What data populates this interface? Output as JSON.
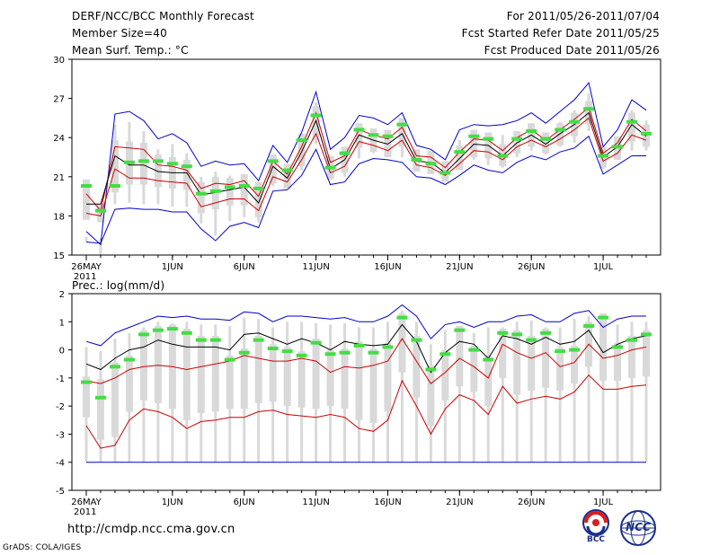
{
  "header": {
    "title": "DERF/NCC/BCC Monthly Forecast",
    "member_size": "Member Size=40",
    "variable": "Mean Surf. Temp.: °C",
    "period": "For 2011/05/26-2011/07/04",
    "started": "Fcst Started Refer Date 2011/05/25",
    "produced": "Fcst Produced Date 2011/05/26"
  },
  "footer": {
    "url": "http://cmdp.ncc.cma.gov.cn",
    "credit": "GrADS: COLA/IGES",
    "logo_bcc": "BCC",
    "logo_ncc": "NCC"
  },
  "colors": {
    "envelope": "#0000cc",
    "spread": "#cc0000",
    "mean": "#000000",
    "observed": "#44dd44",
    "box": "#d9d9da"
  },
  "chart_data": [
    {
      "type": "line",
      "title": "Mean Surf. Temp.: °C",
      "ylim": [
        15,
        30
      ],
      "yticks": [
        15,
        18,
        21,
        24,
        27,
        30
      ],
      "x_tick_labels": [
        "26MAY",
        "1JUN",
        "6JUN",
        "11JUN",
        "16JUN",
        "21JUN",
        "26JUN",
        "1JUL"
      ],
      "x_tick_days": [
        0,
        6,
        11,
        16,
        21,
        26,
        31,
        36
      ],
      "x_year_label": "2011",
      "days": 40,
      "series": [
        {
          "name": "max",
          "values": [
            16.8,
            15.8,
            25.8,
            26.0,
            25.3,
            23.9,
            24.3,
            23.6,
            21.8,
            22.2,
            21.9,
            22.0,
            20.7,
            23.4,
            22.1,
            24.4,
            27.5,
            23.1,
            24.0,
            25.7,
            25.5,
            25.0,
            25.9,
            23.4,
            23.1,
            22.3,
            24.6,
            25.0,
            24.9,
            25.0,
            25.3,
            25.9,
            25.1,
            26.0,
            26.9,
            28.2,
            23.3,
            24.6,
            26.9,
            26.1
          ]
        },
        {
          "name": "upper",
          "values": [
            19.7,
            18.4,
            23.3,
            23.2,
            23.1,
            21.9,
            21.8,
            21.5,
            20.1,
            20.5,
            20.4,
            20.7,
            19.5,
            22.2,
            21.2,
            23.3,
            25.9,
            22.1,
            22.6,
            24.6,
            24.2,
            23.9,
            24.8,
            22.6,
            22.5,
            21.7,
            22.9,
            23.9,
            23.8,
            23.0,
            24.0,
            24.6,
            23.8,
            24.6,
            25.4,
            26.3,
            22.8,
            23.6,
            25.4,
            24.5
          ]
        },
        {
          "name": "mean",
          "values": [
            18.9,
            18.9,
            22.6,
            21.9,
            21.9,
            21.4,
            21.3,
            21.3,
            19.6,
            19.8,
            20.0,
            20.2,
            19.0,
            21.8,
            20.9,
            22.9,
            25.3,
            21.6,
            22.3,
            24.2,
            23.8,
            23.5,
            24.3,
            22.2,
            22.1,
            21.3,
            22.4,
            23.5,
            23.4,
            22.6,
            23.6,
            24.2,
            23.5,
            24.3,
            25.0,
            25.9,
            22.5,
            23.3,
            25.0,
            24.1
          ]
        },
        {
          "name": "lower",
          "values": [
            18.2,
            18.0,
            21.6,
            20.9,
            20.9,
            20.7,
            20.6,
            20.5,
            18.7,
            19.0,
            19.3,
            19.3,
            18.4,
            21.0,
            20.6,
            22.3,
            24.3,
            21.3,
            21.8,
            23.7,
            23.4,
            23.0,
            23.8,
            21.9,
            21.7,
            21.1,
            22.0,
            23.0,
            22.9,
            22.3,
            23.3,
            23.8,
            23.3,
            23.9,
            24.6,
            25.5,
            22.2,
            22.8,
            24.2,
            23.8
          ]
        },
        {
          "name": "min",
          "values": [
            16.0,
            15.9,
            18.5,
            18.6,
            18.5,
            18.5,
            18.3,
            18.3,
            17.0,
            16.1,
            17.2,
            17.5,
            17.1,
            19.9,
            20.0,
            21.1,
            23.1,
            20.4,
            20.6,
            22.0,
            22.4,
            22.3,
            22.1,
            21.0,
            20.9,
            20.4,
            21.1,
            21.9,
            21.5,
            21.3,
            22.1,
            22.6,
            22.3,
            22.9,
            23.2,
            24.1,
            21.2,
            21.9,
            22.6,
            22.6
          ]
        },
        {
          "name": "observed",
          "values": [
            20.3,
            18.4,
            20.3,
            22.1,
            22.2,
            22.2,
            22.0,
            21.8,
            19.7,
            19.9,
            20.2,
            20.3,
            20.1,
            22.2,
            21.5,
            23.8,
            25.7,
            21.7,
            22.8,
            24.6,
            24.2,
            24.1,
            25.0,
            22.3,
            22.0,
            21.3,
            22.9,
            24.1,
            23.9,
            22.6,
            23.9,
            24.5,
            23.9,
            24.6,
            25.2,
            26.2,
            22.6,
            23.3,
            25.2,
            24.3
          ]
        }
      ]
    },
    {
      "type": "line",
      "title": "Prec.: log(mm/d)",
      "ylim": [
        -5,
        2
      ],
      "yticks": [
        -5,
        -4,
        -3,
        -2,
        -1,
        0,
        1,
        2
      ],
      "x_tick_labels": [
        "26MAY",
        "1JUN",
        "6JUN",
        "11JUN",
        "16JUN",
        "21JUN",
        "26JUN",
        "1JUL"
      ],
      "x_tick_days": [
        0,
        6,
        11,
        16,
        21,
        26,
        31,
        36
      ],
      "x_year_label": "2011",
      "days": 40,
      "series": [
        {
          "name": "max",
          "values": [
            0.3,
            0.15,
            0.6,
            0.8,
            1.0,
            1.2,
            1.15,
            1.2,
            1.1,
            1.1,
            1.05,
            1.35,
            1.3,
            1.0,
            1.2,
            1.2,
            1.15,
            1.1,
            1.15,
            1.0,
            1.0,
            1.2,
            1.6,
            1.2,
            0.4,
            0.9,
            1.0,
            0.8,
            1.0,
            1.0,
            1.2,
            1.25,
            1.0,
            1.0,
            1.3,
            1.4,
            0.8,
            1.1,
            1.2,
            1.2
          ]
        },
        {
          "name": "mean",
          "values": [
            -0.5,
            -0.7,
            -0.3,
            0.0,
            0.1,
            0.35,
            0.2,
            0.1,
            0.1,
            0.1,
            0.0,
            0.55,
            0.6,
            0.4,
            0.2,
            0.4,
            0.25,
            0.0,
            0.3,
            0.2,
            0.15,
            0.2,
            0.9,
            0.3,
            -0.8,
            -0.1,
            0.3,
            0.2,
            -0.3,
            0.5,
            0.4,
            0.2,
            0.45,
            0.2,
            0.3,
            0.7,
            -0.1,
            0.2,
            0.4,
            0.5
          ]
        },
        {
          "name": "upper",
          "values": [
            -1.1,
            -1.2,
            -1.0,
            -0.7,
            -0.6,
            -0.55,
            -0.6,
            -0.7,
            -0.6,
            -0.5,
            -0.4,
            -0.2,
            -0.3,
            -0.4,
            -0.4,
            -0.3,
            -0.4,
            -0.8,
            -0.6,
            -0.65,
            -0.55,
            -0.4,
            0.4,
            -0.4,
            -1.2,
            -0.8,
            -0.3,
            -0.6,
            -1.0,
            0.2,
            -0.1,
            -0.3,
            -0.1,
            -0.6,
            -0.45,
            0.2,
            -0.3,
            -0.2,
            0.0,
            0.1
          ]
        },
        {
          "name": "lower",
          "values": [
            -2.7,
            -3.5,
            -3.4,
            -2.5,
            -2.1,
            -2.2,
            -2.4,
            -2.8,
            -2.55,
            -2.5,
            -2.4,
            -2.4,
            -2.2,
            -2.15,
            -2.3,
            -2.35,
            -2.4,
            -2.3,
            -2.4,
            -2.8,
            -2.9,
            -2.5,
            -1.1,
            -2.0,
            -3.0,
            -2.1,
            -1.6,
            -1.8,
            -2.3,
            -1.3,
            -1.9,
            -1.75,
            -1.65,
            -1.75,
            -1.5,
            -0.9,
            -1.4,
            -1.4,
            -1.3,
            -1.25
          ]
        },
        {
          "name": "min",
          "values": [
            -4.0,
            -4.0,
            -4.0,
            -4.0,
            -4.0,
            -4.0,
            -4.0,
            -4.0,
            -4.0,
            -4.0,
            -4.0,
            -4.0,
            -4.0,
            -4.0,
            -4.0,
            -4.0,
            -4.0,
            -4.0,
            -4.0,
            -4.0,
            -4.0,
            -4.0,
            -4.0,
            -4.0,
            -4.0,
            -4.0,
            -4.0,
            -4.0,
            -4.0,
            -4.0,
            -4.0,
            -4.0,
            -4.0,
            -4.0,
            -4.0,
            -4.0,
            -4.0,
            -4.0,
            -4.0,
            -4.0
          ]
        },
        {
          "name": "observed",
          "values": [
            -1.15,
            -1.7,
            -0.6,
            -0.35,
            0.55,
            0.7,
            0.75,
            0.6,
            0.35,
            0.35,
            -0.35,
            -0.1,
            0.35,
            0.05,
            -0.05,
            -0.2,
            0.25,
            -0.15,
            -0.1,
            0.15,
            -0.1,
            0.1,
            1.15,
            0.35,
            -0.7,
            -0.15,
            0.7,
            0.0,
            -0.35,
            0.6,
            0.55,
            0.35,
            0.6,
            -0.05,
            0.0,
            0.85,
            1.15,
            0.1,
            0.35,
            0.55
          ]
        }
      ]
    }
  ]
}
